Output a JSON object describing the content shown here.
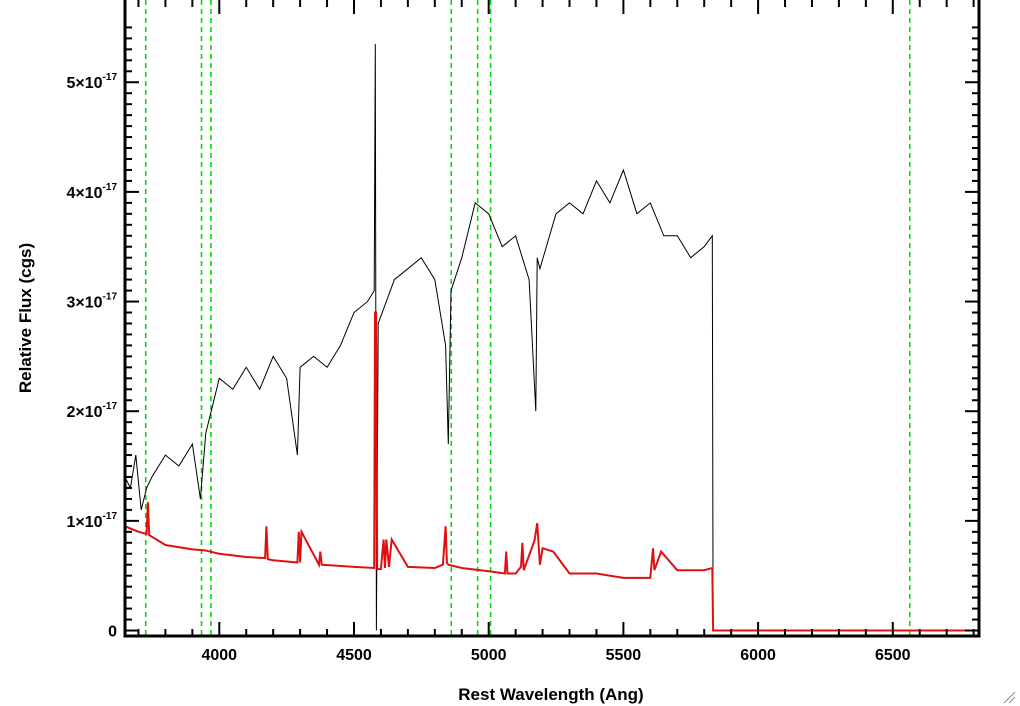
{
  "chart_data": {
    "type": "line",
    "xlabel": "Rest Wavelength (Ang)",
    "ylabel": "Relative Flux (cgs)",
    "xlim": [
      3650,
      6820
    ],
    "ylim": [
      -5e-19,
      5.75e-17
    ],
    "x_ticks": [
      {
        "value": 4000,
        "label": "4000"
      },
      {
        "value": 4500,
        "label": "4500"
      },
      {
        "value": 5000,
        "label": "5000"
      },
      {
        "value": 5500,
        "label": "5500"
      },
      {
        "value": 6000,
        "label": "6000"
      },
      {
        "value": 6500,
        "label": "6500"
      }
    ],
    "y_ticks": [
      {
        "value": 0,
        "mantissa": "0",
        "exp": ""
      },
      {
        "value": 1e-17,
        "mantissa": "1×10",
        "exp": "-17"
      },
      {
        "value": 2e-17,
        "mantissa": "2×10",
        "exp": "-17"
      },
      {
        "value": 3e-17,
        "mantissa": "3×10",
        "exp": "-17"
      },
      {
        "value": 4e-17,
        "mantissa": "4×10",
        "exp": "-17"
      },
      {
        "value": 5e-17,
        "mantissa": "5×10",
        "exp": "-17"
      }
    ],
    "vlines": [
      3727,
      3934,
      3969,
      4861,
      4959,
      5007,
      6563
    ],
    "colors": {
      "spectrum": "#000000",
      "error": "#e01010",
      "vlines": "#00dd00",
      "axes": "#000000"
    },
    "series": [
      {
        "style": "spectrum",
        "x": [
          3650,
          3670,
          3690,
          3710,
          3730,
          3750,
          3800,
          3850,
          3900,
          3930,
          3950,
          3980,
          4000,
          4050,
          4100,
          4150,
          4200,
          4250,
          4290,
          4300,
          4350,
          4400,
          4450,
          4500,
          4550,
          4575,
          4579,
          4583,
          4590,
          4650,
          4700,
          4750,
          4800,
          4840,
          4850,
          4860,
          4900,
          4950,
          5000,
          5050,
          5100,
          5150,
          5175,
          5180,
          5190,
          5250,
          5300,
          5350,
          5400,
          5450,
          5500,
          5550,
          5600,
          5650,
          5700,
          5750,
          5800,
          5830,
          5833,
          5836,
          5860,
          6000,
          6500,
          6820
        ],
        "y": [
          1.4e-17,
          1.3e-17,
          1.6e-17,
          1.1e-17,
          1.3e-17,
          1.4e-17,
          1.6e-17,
          1.5e-17,
          1.7e-17,
          1.2e-17,
          1.8e-17,
          2.1e-17,
          2.3e-17,
          2.2e-17,
          2.4e-17,
          2.2e-17,
          2.5e-17,
          2.3e-17,
          1.6e-17,
          2.4e-17,
          2.5e-17,
          2.4e-17,
          2.6e-17,
          2.9e-17,
          3e-17,
          3.1e-17,
          5.35e-17,
          0.0,
          2.8e-17,
          3.2e-17,
          3.3e-17,
          3.4e-17,
          3.2e-17,
          2.6e-17,
          1.7e-17,
          3.1e-17,
          3.4e-17,
          3.9e-17,
          3.8e-17,
          3.5e-17,
          3.6e-17,
          3.2e-17,
          2e-17,
          3.4e-17,
          3.3e-17,
          3.8e-17,
          3.9e-17,
          3.8e-17,
          4.1e-17,
          3.9e-17,
          4.2e-17,
          3.8e-17,
          3.9e-17,
          3.6e-17,
          3.6e-17,
          3.4e-17,
          3.5e-17,
          3.6e-17,
          0.0,
          0.0,
          0.0,
          0.0,
          0.0,
          0.0
        ]
      },
      {
        "style": "error",
        "x": [
          3650,
          3700,
          3730,
          3735,
          3740,
          3800,
          3900,
          3950,
          4000,
          4100,
          4170,
          4175,
          4180,
          4200,
          4290,
          4295,
          4300,
          4305,
          4370,
          4375,
          4380,
          4500,
          4575,
          4578,
          4582,
          4586,
          4600,
          4610,
          4615,
          4620,
          4630,
          4640,
          4700,
          4800,
          4830,
          4840,
          4845,
          4850,
          4900,
          5000,
          5060,
          5065,
          5070,
          5100,
          5120,
          5125,
          5130,
          5170,
          5180,
          5190,
          5200,
          5240,
          5300,
          5400,
          5500,
          5600,
          5610,
          5615,
          5640,
          5700,
          5800,
          5830,
          5833,
          5836,
          6000,
          6500,
          6820
        ],
        "y": [
          9.5e-18,
          9e-18,
          8.8e-18,
          1.17e-17,
          8.7e-18,
          7.8e-18,
          7.4e-18,
          7.3e-18,
          7e-18,
          6.7e-18,
          6.6e-18,
          9.5e-18,
          6.5e-18,
          6.4e-18,
          6.2e-18,
          9e-18,
          6.2e-18,
          9e-18,
          6e-18,
          7.2e-18,
          6e-18,
          5.8e-18,
          5.7e-18,
          2.9e-17,
          2.9e-17,
          5.6e-18,
          5.6e-18,
          8.3e-18,
          5.7e-18,
          8.3e-18,
          5.8e-18,
          8.3e-18,
          5.8e-18,
          5.7e-18,
          6e-18,
          9.5e-18,
          6.2e-18,
          6e-18,
          5.7e-18,
          5.4e-18,
          5.2e-18,
          7.2e-18,
          5.2e-18,
          5.2e-18,
          5.8e-18,
          8e-18,
          5.5e-18,
          8.2e-18,
          9.8e-18,
          6e-18,
          7.5e-18,
          7.2e-18,
          5.2e-18,
          5.2e-18,
          4.8e-18,
          4.8e-18,
          7.5e-18,
          5.5e-18,
          7.2e-18,
          5.5e-18,
          5.5e-18,
          5.7e-18,
          0.0,
          0.0,
          0.0,
          0.0,
          0.0
        ]
      }
    ]
  }
}
